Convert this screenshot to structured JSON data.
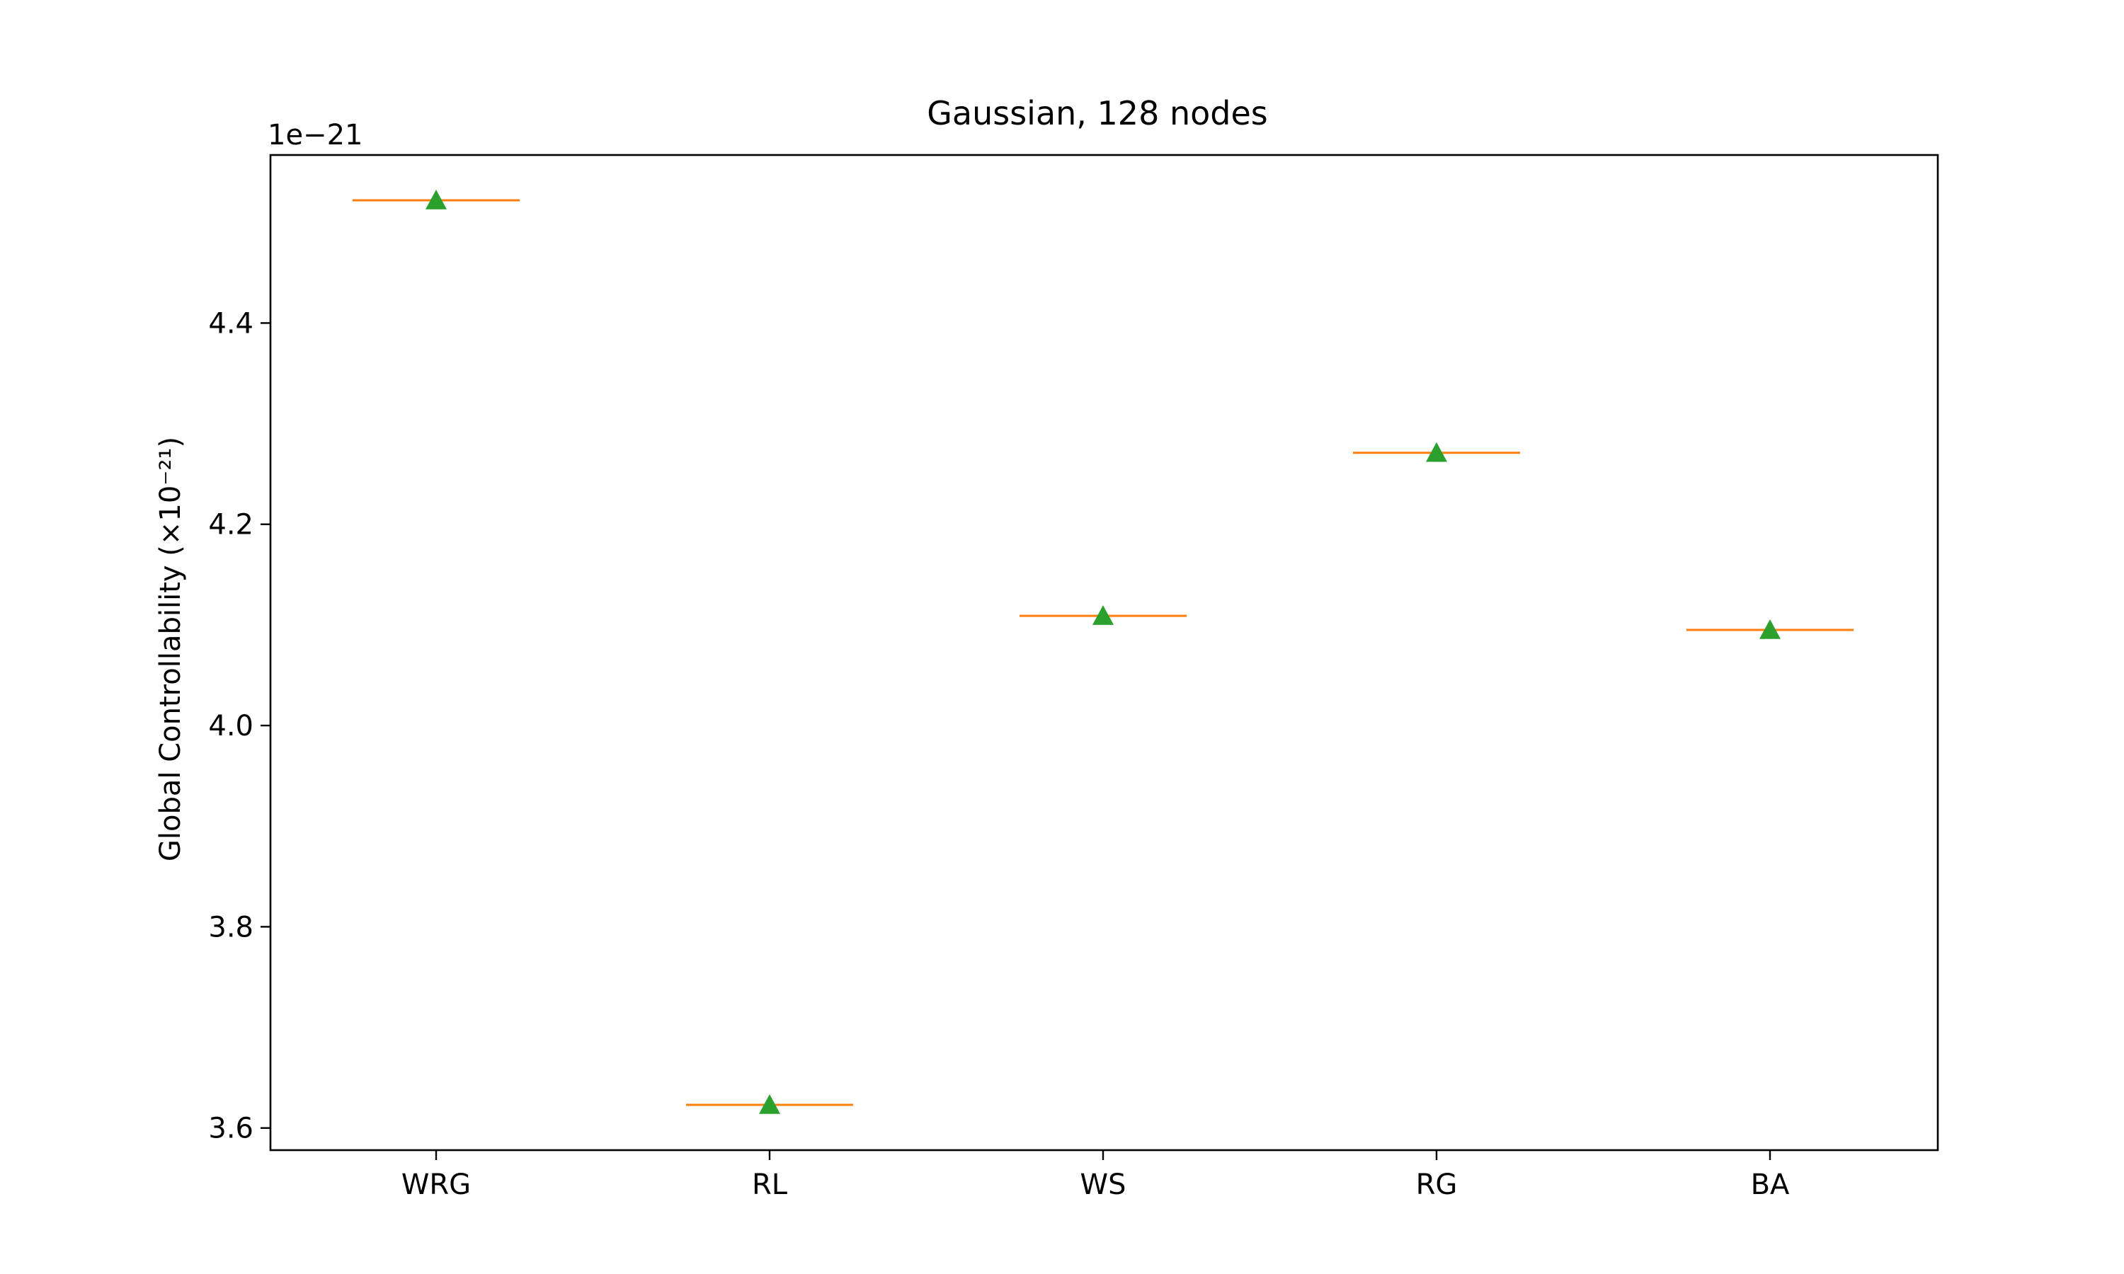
{
  "chart_data": {
    "type": "box",
    "title": "Gaussian, 128 nodes",
    "xlabel": "",
    "ylabel": "Global Controllability (×10⁻²¹)",
    "offset_text": "1e−21",
    "categories": [
      "WRG",
      "RL",
      "WS",
      "RG",
      "BA"
    ],
    "medians": [
      4.522,
      3.623,
      4.109,
      4.271,
      4.095
    ],
    "means": [
      4.522,
      3.623,
      4.109,
      4.271,
      4.095
    ],
    "ylim": [
      3.578,
      4.567
    ],
    "yticks": [
      3.6,
      3.8,
      4.0,
      4.2,
      4.4
    ],
    "ytick_labels": [
      "3.6",
      "3.8",
      "4.0",
      "4.2",
      "4.4"
    ],
    "grid": false,
    "legend": null,
    "colors": {
      "median": "#ff7f0e",
      "mean_marker": "#2ca02c",
      "axes": "#000000"
    }
  }
}
